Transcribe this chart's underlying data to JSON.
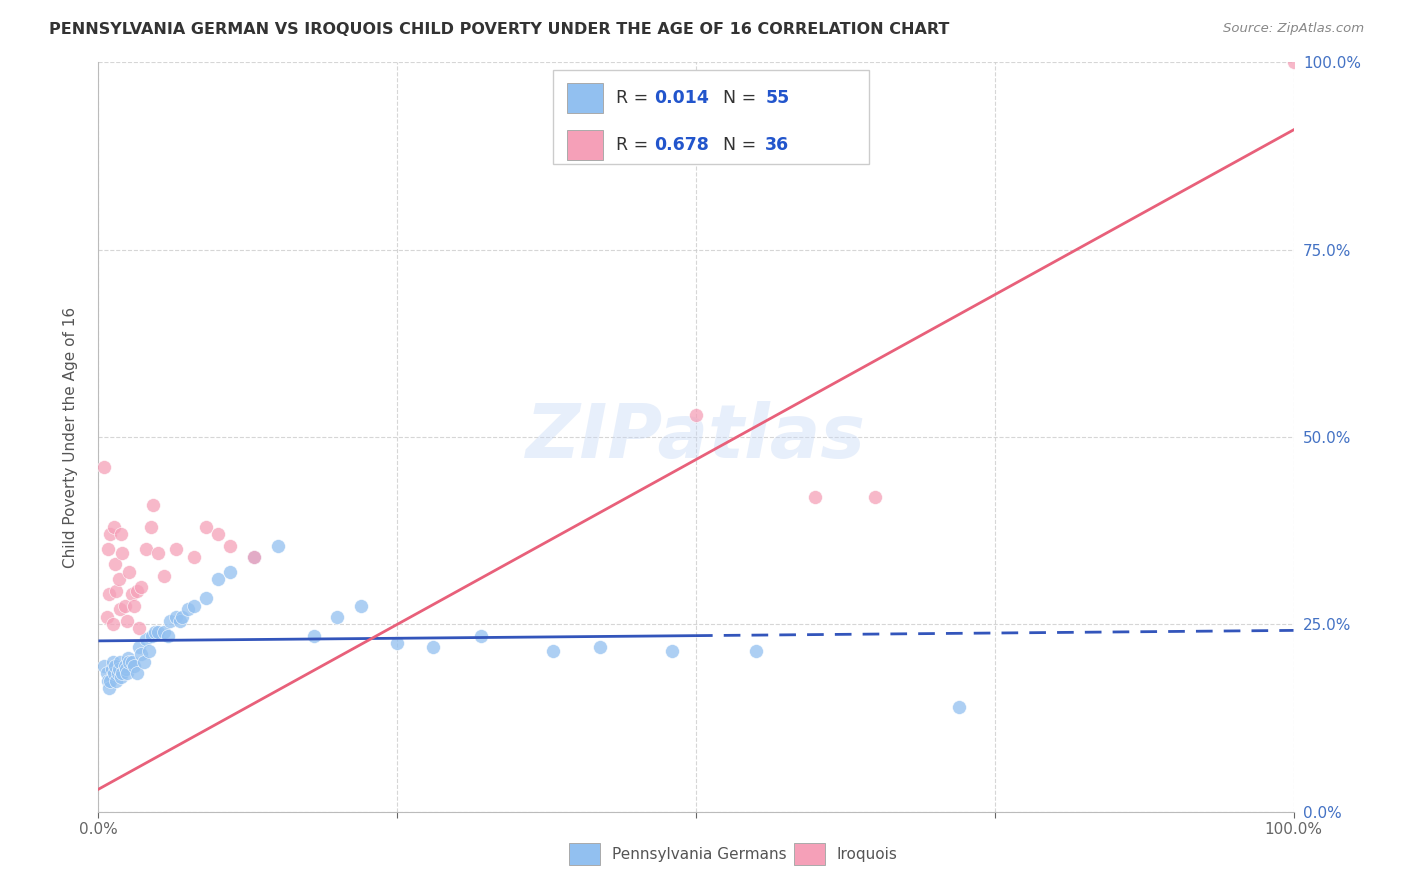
{
  "title": "PENNSYLVANIA GERMAN VS IROQUOIS CHILD POVERTY UNDER THE AGE OF 16 CORRELATION CHART",
  "source": "Source: ZipAtlas.com",
  "ylabel": "Child Poverty Under the Age of 16",
  "xlim": [
    0,
    1
  ],
  "ylim": [
    0,
    1
  ],
  "xticks": [
    0.0,
    0.25,
    0.5,
    0.75,
    1.0
  ],
  "yticks": [
    0.0,
    0.25,
    0.5,
    0.75,
    1.0
  ],
  "xticklabels": [
    "0.0%",
    "",
    "",
    "",
    "100.0%"
  ],
  "yticklabels_right": [
    "0.0%",
    "25.0%",
    "50.0%",
    "75.0%",
    "100.0%"
  ],
  "pa_german_color": "#92C0F0",
  "iroquois_color": "#F5A0B8",
  "pa_german_line_color": "#3355BB",
  "iroquois_line_color": "#E8607A",
  "R_pa": 0.014,
  "N_pa": 55,
  "R_iroq": 0.678,
  "N_iroq": 36,
  "legend_label_pa": "Pennsylvania Germans",
  "legend_label_iroq": "Iroquois",
  "grid_color": "#CCCCCC",
  "background_color": "#FFFFFF",
  "watermark": "ZIPatlas",
  "pa_line_solid_end": 0.5,
  "pa_line_y_start": 0.228,
  "pa_line_y_end": 0.242,
  "iroq_line_x_start": 0.0,
  "iroq_line_y_start": 0.03,
  "iroq_line_x_end": 1.0,
  "iroq_line_y_end": 0.91,
  "pa_german_x": [
    0.005,
    0.007,
    0.008,
    0.009,
    0.01,
    0.011,
    0.012,
    0.013,
    0.014,
    0.015,
    0.016,
    0.017,
    0.018,
    0.019,
    0.02,
    0.022,
    0.023,
    0.024,
    0.025,
    0.026,
    0.028,
    0.03,
    0.032,
    0.034,
    0.036,
    0.038,
    0.04,
    0.042,
    0.045,
    0.047,
    0.05,
    0.055,
    0.058,
    0.06,
    0.065,
    0.068,
    0.07,
    0.075,
    0.08,
    0.09,
    0.1,
    0.11,
    0.13,
    0.15,
    0.18,
    0.2,
    0.22,
    0.25,
    0.28,
    0.32,
    0.38,
    0.42,
    0.48,
    0.55,
    0.72
  ],
  "pa_german_y": [
    0.195,
    0.185,
    0.175,
    0.165,
    0.175,
    0.19,
    0.2,
    0.185,
    0.195,
    0.175,
    0.185,
    0.19,
    0.2,
    0.18,
    0.185,
    0.195,
    0.19,
    0.185,
    0.205,
    0.2,
    0.2,
    0.195,
    0.185,
    0.22,
    0.21,
    0.2,
    0.23,
    0.215,
    0.235,
    0.24,
    0.24,
    0.24,
    0.235,
    0.255,
    0.26,
    0.255,
    0.26,
    0.27,
    0.275,
    0.285,
    0.31,
    0.32,
    0.34,
    0.355,
    0.235,
    0.26,
    0.275,
    0.225,
    0.22,
    0.235,
    0.215,
    0.22,
    0.215,
    0.215,
    0.14
  ],
  "iroquois_x": [
    0.005,
    0.007,
    0.008,
    0.009,
    0.01,
    0.012,
    0.013,
    0.014,
    0.015,
    0.017,
    0.018,
    0.019,
    0.02,
    0.022,
    0.024,
    0.026,
    0.028,
    0.03,
    0.032,
    0.034,
    0.036,
    0.04,
    0.044,
    0.046,
    0.05,
    0.055,
    0.065,
    0.08,
    0.09,
    0.1,
    0.11,
    0.13,
    0.5,
    0.6,
    0.65,
    1.0
  ],
  "iroquois_y": [
    0.46,
    0.26,
    0.35,
    0.29,
    0.37,
    0.25,
    0.38,
    0.33,
    0.295,
    0.31,
    0.27,
    0.37,
    0.345,
    0.275,
    0.255,
    0.32,
    0.29,
    0.275,
    0.295,
    0.245,
    0.3,
    0.35,
    0.38,
    0.41,
    0.345,
    0.315,
    0.35,
    0.34,
    0.38,
    0.37,
    0.355,
    0.34,
    0.53,
    0.42,
    0.42,
    1.0
  ]
}
